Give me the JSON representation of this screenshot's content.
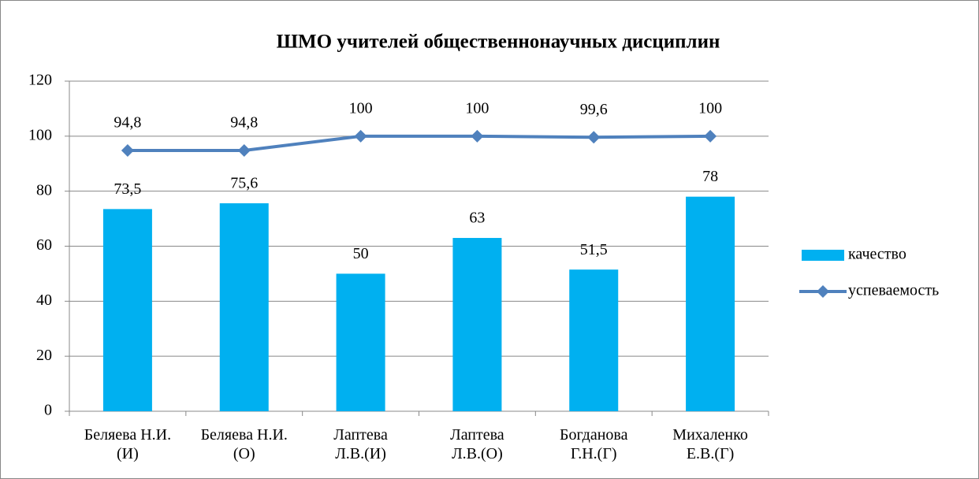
{
  "chart_data": {
    "type": "combo",
    "title": "ШМО учителей общественнонаучных дисциплин",
    "categories": [
      "Беляева Н.И.\n(И)",
      "Беляева Н.И.\n(О)",
      "Лаптева\nЛ.В.(И)",
      "Лаптева\nЛ.В.(О)",
      "Богданова\nГ.Н.(Г)",
      "Михаленко\nЕ.В.(Г)"
    ],
    "series": [
      {
        "name": "качество",
        "type": "bar",
        "color": "#00b0f0",
        "values": [
          73.5,
          75.6,
          50,
          63,
          51.5,
          78
        ],
        "value_labels": [
          "73,5",
          "75,6",
          "50",
          "63",
          "51,5",
          "78"
        ]
      },
      {
        "name": "успеваемость",
        "type": "line",
        "color": "#4f81bd",
        "values": [
          94.8,
          94.8,
          100,
          100,
          99.6,
          100
        ],
        "value_labels": [
          "94,8",
          "94,8",
          "100",
          "100",
          "99,6",
          "100"
        ]
      }
    ],
    "ylim": [
      0,
      120
    ],
    "yticks": [
      0,
      20,
      40,
      60,
      80,
      100,
      120
    ],
    "grid": true,
    "legend": "right"
  }
}
